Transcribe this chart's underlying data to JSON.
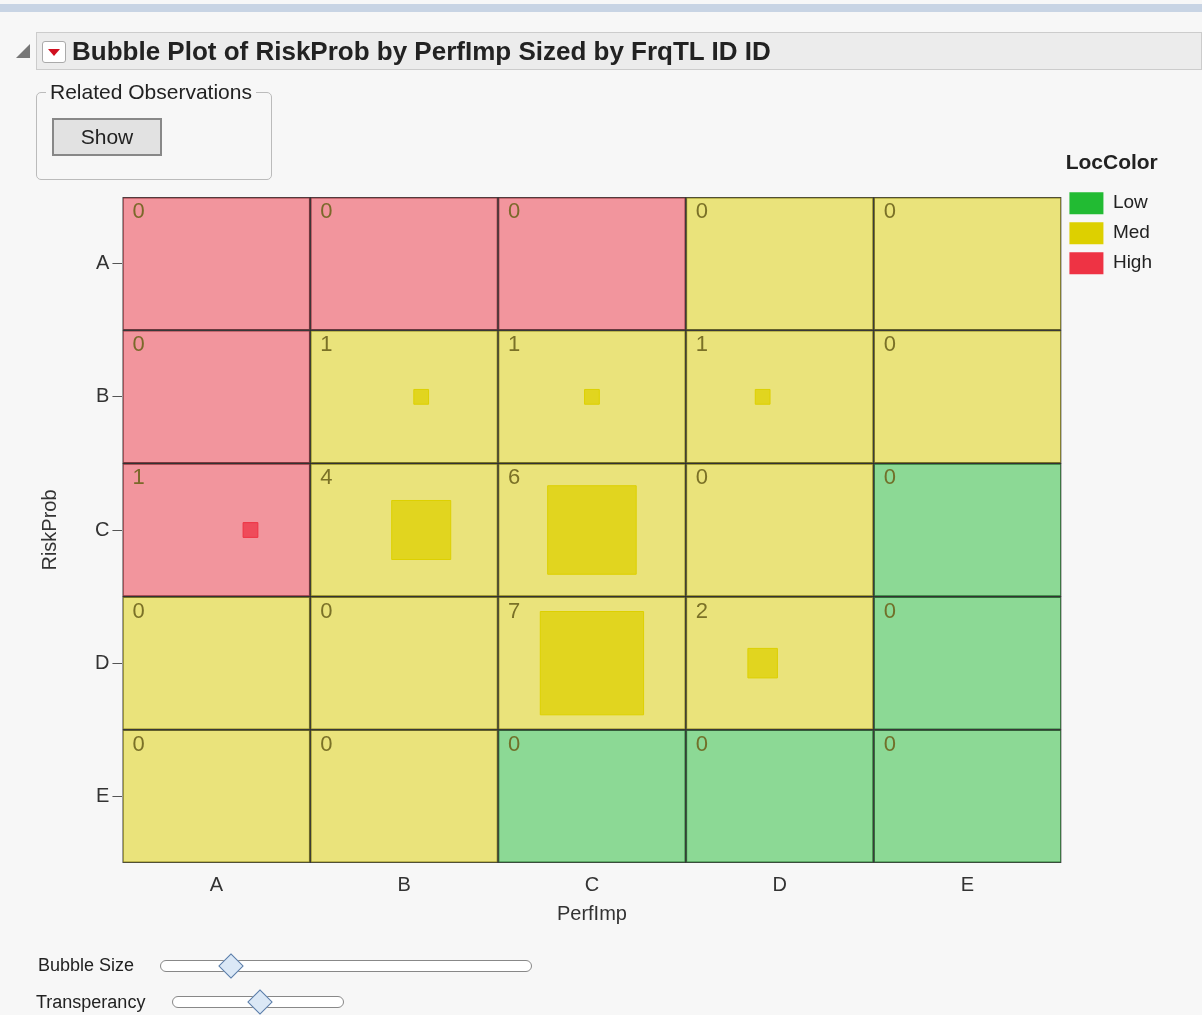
{
  "chart_data": {
    "type": "heatmap",
    "title": "Bubble Plot of RiskProb by PerfImp Sized by FrqTL ID ID",
    "xlabel": "PerfImp",
    "ylabel": "RiskProb",
    "legend_title": "LocColor",
    "legend": "right",
    "marker": "square",
    "data_labels": true,
    "categories": [
      "A",
      "B",
      "C",
      "D",
      "E"
    ],
    "y_categories": [
      "A",
      "B",
      "C",
      "D",
      "E"
    ],
    "cells": [
      [
        0,
        0,
        0,
        0,
        0
      ],
      [
        0,
        1,
        1,
        1,
        0
      ],
      [
        1,
        4,
        6,
        0,
        0
      ],
      [
        0,
        0,
        7,
        2,
        0
      ],
      [
        0,
        0,
        0,
        0,
        0
      ]
    ],
    "colors": [
      [
        "#ee3344",
        "#ee3344",
        "#ee3344",
        "#ddd000",
        "#ddd000"
      ],
      [
        "#ee3344",
        "#ddd000",
        "#ddd000",
        "#ddd000",
        "#ddd000"
      ],
      [
        "#ee3344",
        "#ddd000",
        "#ddd000",
        "#ddd000",
        "#22bb33"
      ],
      [
        "#ddd000",
        "#ddd000",
        "#ddd000",
        "#ddd000",
        "#22bb33"
      ],
      [
        "#ddd000",
        "#ddd000",
        "#22bb33",
        "#22bb33",
        "#22bb33"
      ]
    ],
    "series": [
      {
        "name": "Low",
        "color": "#22bb33",
        "values": [
          null,
          null,
          null,
          null,
          null
        ]
      },
      {
        "name": "Med",
        "color": "#ddd000",
        "values": [
          null,
          null,
          null,
          null,
          null
        ]
      },
      {
        "name": "High",
        "color": "#ee3344",
        "values": [
          null,
          null,
          null,
          null,
          null
        ]
      }
    ],
    "annotations": [
      "Related Observations",
      "Show",
      "Bubble Size",
      "Transperancy"
    ]
  }
}
